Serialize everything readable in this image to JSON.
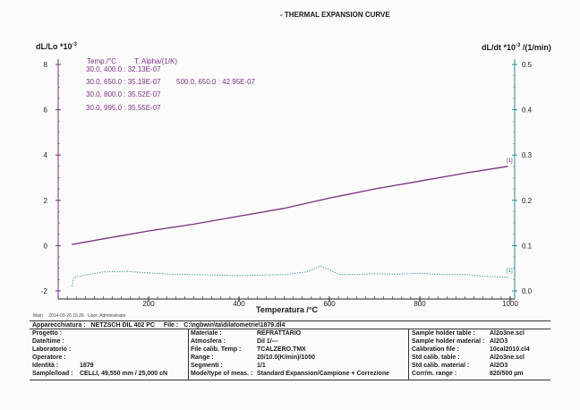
{
  "title": "- THERMAL EXPANSION CURVE",
  "left_axis_label": "dL/Lo *10",
  "left_axis_exp": "-3",
  "right_axis_label": "dL/dt *10",
  "right_axis_exp": "-3",
  "right_axis_unit": " /(1/min)",
  "xlabel": "Temperatura /°C",
  "table": {
    "header_temp": "Temp./°C",
    "header_alpha": "T. Alpha/(1/K)",
    "rows": [
      "30.0, 400.0 : 32.13E-07",
      "30.0, 650.0 : 35.19E-07",
      "30.0, 800.0 : 35.52E-07",
      "30.0, 995.0 : 35.55E-07"
    ],
    "extra": "500.0, 650.0 : 42.95E-07"
  },
  "series_tag_1": "[1]",
  "series_tag_2": "[1]",
  "chart_data": {
    "type": "line",
    "title": "- THERMAL EXPANSION CURVE",
    "xlabel": "Temperatura /°C",
    "ylabel": "dL/Lo *10-3",
    "y2label": "dL/dt *10-3 /(1/min)",
    "xlim": [
      0,
      1000
    ],
    "ylim": [
      -2,
      8
    ],
    "y2lim": [
      0,
      0.5
    ],
    "x_ticks": [
      200,
      400,
      600,
      800,
      1000
    ],
    "y_ticks": [
      -2,
      0,
      2,
      4,
      6,
      8
    ],
    "y2_ticks": [
      0.0,
      0.1,
      0.2,
      0.3,
      0.4,
      0.5
    ],
    "grid": false,
    "series": [
      {
        "name": "[1]",
        "axis": "left",
        "style": "solid",
        "color": "#7a2f82",
        "x": [
          30,
          100,
          200,
          300,
          400,
          500,
          600,
          700,
          800,
          900,
          995
        ],
        "y": [
          0.05,
          0.3,
          0.65,
          0.95,
          1.3,
          1.65,
          2.1,
          2.5,
          2.85,
          3.2,
          3.5
        ]
      },
      {
        "name": "[1]",
        "axis": "right",
        "style": "dotted",
        "color": "#2f8a8a",
        "x": [
          30,
          35,
          60,
          100,
          150,
          200,
          250,
          300,
          350,
          400,
          450,
          500,
          550,
          580,
          600,
          620,
          650,
          700,
          750,
          800,
          850,
          900,
          950,
          995
        ],
        "y": [
          0.01,
          0.03,
          0.035,
          0.042,
          0.043,
          0.04,
          0.037,
          0.036,
          0.035,
          0.034,
          0.035,
          0.036,
          0.042,
          0.055,
          0.047,
          0.037,
          0.036,
          0.038,
          0.037,
          0.039,
          0.036,
          0.036,
          0.032,
          0.03
        ]
      }
    ]
  },
  "footer": {
    "main": "Main",
    "date": "2014-03-20 15:26",
    "user": "User: Administrator"
  },
  "info": {
    "apparecchiatura_label": "Apparecchiatura :",
    "apparecchiatura": "NETZSCH DIL 402 PC",
    "file_label": "File :",
    "file": "C:\\ngbwin\\ta\\dilatometrie\\1879.dl4",
    "progetto_label": "Progetto :",
    "datetime_label": "Date/time :",
    "laboratorio_label": "Laboratorio :",
    "operatore_label": "Operatore :",
    "identita_label": "Identità :",
    "identita": "1879",
    "sample_label": "Sample/load :",
    "sample": "CELLI, 49,550 mm / 25,000 cN",
    "materiale_label": "Materiale :",
    "materiale": "REFRATTARIO",
    "atmosfera_label": "Atmosfera :",
    "atmosfera": "Dil 1/---",
    "filecalib_label": "File calib. Temp :",
    "filecalib": "TCALZERO.TMX",
    "range_label": "Range :",
    "range": "20/10.0(K/min)/1000",
    "segmenti_label": "Segmenti :",
    "segmenti": "1/1",
    "mode_label": "Mode/type of meas. :",
    "mode": "Standard Expansion/Campione + Correzione",
    "sht_label": "Sample holder table :",
    "sht": "Al2o3ne.scl",
    "shm_label": "Sample holder material :",
    "shm": "Al2O3",
    "calib_label": "Calibration file :",
    "calib": "10cal2010.cl4",
    "stdtab_label": "Std calib. table :",
    "stdtab": "Al2o3ne.scl",
    "stdmat_label": "Std calib. material :",
    "stdmat": "Al2O3",
    "corr_label": "Corr/m. range :",
    "corr": "820/500 µm"
  }
}
